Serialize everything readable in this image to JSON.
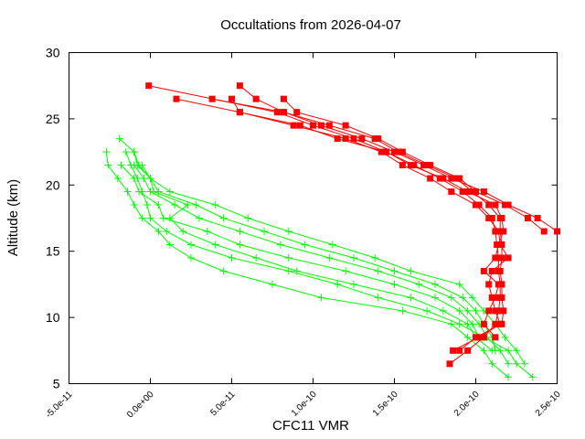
{
  "chart_data": {
    "type": "line",
    "title": "Occultations from 2026-04-07",
    "xlabel": "CFC11 VMR",
    "ylabel": "Altitude (km)",
    "xlim": [
      -5e-11,
      2.5e-10
    ],
    "ylim": [
      5,
      30
    ],
    "xticks": [
      -5e-11,
      0,
      5e-11,
      1e-10,
      1.5e-10,
      2e-10,
      2.5e-10
    ],
    "xtick_labels": [
      "-5.0e-11",
      "0.0e+00",
      "5.0e-11",
      "1.0e-10",
      "1.5e-10",
      "2.0e-10",
      "2.5e-10"
    ],
    "yticks": [
      5,
      10,
      15,
      20,
      25,
      30
    ],
    "ytick_labels": [
      "5",
      "10",
      "15",
      "20",
      "25",
      "30"
    ],
    "grid": false,
    "legend": "none",
    "colors": {
      "red_series": "#ff0000",
      "green_series": "#00ff00",
      "axes": "#000000"
    },
    "series": [
      {
        "color": "#ff0000",
        "marker": "filled-square",
        "points": [
          [
            -1e-12,
            27.5
          ],
          [
            7.8e-11,
            25.5
          ],
          [
            1e-10,
            24.5
          ],
          [
            1.25e-10,
            23.5
          ],
          [
            1.45e-10,
            22.5
          ],
          [
            1.62e-10,
            21.5
          ],
          [
            1.78e-10,
            20.5
          ],
          [
            1.92e-10,
            19.5
          ],
          [
            2.02e-10,
            18.5
          ],
          [
            2.1e-10,
            17.5
          ],
          [
            2.12e-10,
            16.5
          ],
          [
            2.13e-10,
            15.5
          ],
          [
            2.14e-10,
            14.5
          ],
          [
            2.14e-10,
            13.5
          ],
          [
            2.15e-10,
            12.5
          ],
          [
            2.15e-10,
            11.5
          ],
          [
            2.14e-10,
            10.5
          ],
          [
            2.12e-10,
            9.5
          ],
          [
            2.05e-10,
            8.5
          ],
          [
            1.95e-10,
            7.5
          ],
          [
            1.84e-10,
            6.5
          ]
        ]
      },
      {
        "color": "#ff0000",
        "marker": "filled-square",
        "points": [
          [
            1.6e-11,
            26.5
          ],
          [
            5.5e-11,
            25.5
          ],
          [
            8.8e-11,
            24.5
          ],
          [
            1.2e-10,
            23.5
          ],
          [
            1.42e-10,
            22.5
          ],
          [
            1.55e-10,
            21.5
          ],
          [
            1.72e-10,
            20.5
          ],
          [
            1.85e-10,
            19.5
          ],
          [
            2e-10,
            18.5
          ],
          [
            2.08e-10,
            17.5
          ],
          [
            2.14e-10,
            16.5
          ],
          [
            2.15e-10,
            15.5
          ],
          [
            2.2e-10,
            14.5
          ],
          [
            2.1e-10,
            13.5
          ],
          [
            2.08e-10,
            12.5
          ],
          [
            2.1e-10,
            11.5
          ],
          [
            2.12e-10,
            10.5
          ],
          [
            2.15e-10,
            9.5
          ],
          [
            2.02e-10,
            8.5
          ],
          [
            1.86e-10,
            7.5
          ]
        ]
      },
      {
        "color": "#ff0000",
        "marker": "filled-square",
        "points": [
          [
            3.8e-11,
            26.5
          ],
          [
            8.2e-11,
            25.5
          ],
          [
            1.05e-10,
            24.5
          ],
          [
            1.3e-10,
            23.5
          ],
          [
            1.5e-10,
            22.5
          ],
          [
            1.68e-10,
            21.5
          ],
          [
            1.85e-10,
            20.5
          ],
          [
            2.05e-10,
            19.5
          ],
          [
            2.2e-10,
            18.5
          ],
          [
            2.38e-10,
            17.5
          ],
          [
            2.5e-10,
            16.5
          ]
        ]
      },
      {
        "color": "#ff0000",
        "marker": "filled-square",
        "points": [
          [
            5.5e-11,
            27.5
          ],
          [
            6.5e-11,
            26.5
          ],
          [
            8.2e-11,
            25.5
          ],
          [
            1.1e-10,
            24.5
          ],
          [
            1.38e-10,
            23.5
          ],
          [
            1.52e-10,
            22.5
          ],
          [
            1.7e-10,
            21.5
          ],
          [
            1.88e-10,
            20.5
          ],
          [
            1.98e-10,
            19.5
          ],
          [
            2.08e-10,
            18.5
          ],
          [
            2.15e-10,
            17.5
          ],
          [
            2.15e-10,
            16.5
          ],
          [
            2.16e-10,
            15.5
          ],
          [
            2.16e-10,
            14.5
          ],
          [
            2.15e-10,
            13.5
          ],
          [
            2.16e-10,
            12.5
          ],
          [
            2.16e-10,
            11.5
          ],
          [
            2.17e-10,
            10.5
          ],
          [
            2.16e-10,
            9.5
          ],
          [
            2e-10,
            8.5
          ],
          [
            1.9e-10,
            7.5
          ]
        ]
      },
      {
        "color": "#ff0000",
        "marker": "filled-square",
        "points": [
          [
            5e-11,
            26.5
          ],
          [
            5.5e-11,
            25.5
          ],
          [
            9.2e-11,
            24.5
          ],
          [
            1.15e-10,
            23.5
          ],
          [
            1.45e-10,
            22.5
          ],
          [
            1.6e-10,
            21.5
          ],
          [
            1.8e-10,
            20.5
          ],
          [
            1.95e-10,
            19.5
          ],
          [
            2.12e-10,
            18.5
          ],
          [
            2.16e-10,
            17.5
          ],
          [
            2.17e-10,
            16.5
          ],
          [
            2.14e-10,
            15.5
          ],
          [
            2.12e-10,
            14.5
          ],
          [
            2.05e-10,
            13.5
          ],
          [
            2.14e-10,
            12.5
          ],
          [
            2.12e-10,
            11.5
          ],
          [
            2.08e-10,
            10.5
          ],
          [
            2.05e-10,
            9.5
          ],
          [
            2.12e-10,
            8.5
          ]
        ]
      },
      {
        "color": "#ff0000",
        "marker": "filled-square",
        "points": [
          [
            8.2e-11,
            26.5
          ],
          [
            9e-11,
            25.5
          ],
          [
            1.2e-10,
            24.5
          ],
          [
            1.4e-10,
            23.5
          ],
          [
            1.55e-10,
            22.5
          ],
          [
            1.72e-10,
            21.5
          ],
          [
            1.9e-10,
            20.5
          ],
          [
            2e-10,
            19.5
          ],
          [
            2.18e-10,
            18.5
          ],
          [
            2.32e-10,
            17.5
          ],
          [
            2.42e-10,
            16.5
          ]
        ]
      },
      {
        "color": "#00ff00",
        "marker": "plus",
        "points": [
          [
            -1.9e-11,
            23.5
          ],
          [
            -1e-11,
            22.5
          ],
          [
            -8e-12,
            21.5
          ],
          [
            0,
            20.5
          ],
          [
            1.2e-11,
            19.5
          ],
          [
            4e-11,
            18.5
          ],
          [
            6e-11,
            17.5
          ],
          [
            8.5e-11,
            16.5
          ],
          [
            1.12e-10,
            15.5
          ],
          [
            1.38e-10,
            14.5
          ],
          [
            1.6e-10,
            13.5
          ],
          [
            1.9e-10,
            12.5
          ],
          [
            1.98e-10,
            11.5
          ],
          [
            2.05e-10,
            10.5
          ],
          [
            2.12e-10,
            9.5
          ],
          [
            2.18e-10,
            8.5
          ],
          [
            2.25e-10,
            7.5
          ],
          [
            2.3e-10,
            6.5
          ]
        ]
      },
      {
        "color": "#00ff00",
        "marker": "plus",
        "points": [
          [
            -2.7e-11,
            22.5
          ],
          [
            -2.6e-11,
            21.5
          ],
          [
            -2e-11,
            20.5
          ],
          [
            -1.4e-11,
            19.5
          ],
          [
            -1e-11,
            18.5
          ],
          [
            -5e-12,
            17.5
          ],
          [
            5e-12,
            16.5
          ],
          [
            1.2e-11,
            15.5
          ],
          [
            2.5e-11,
            14.5
          ],
          [
            4.5e-11,
            13.5
          ],
          [
            7.5e-11,
            12.5
          ],
          [
            1.05e-10,
            11.5
          ],
          [
            1.55e-10,
            10.5
          ],
          [
            1.85e-10,
            9.5
          ],
          [
            1.95e-10,
            8.5
          ],
          [
            2.05e-10,
            7.5
          ],
          [
            2.1e-10,
            6.5
          ],
          [
            2.2e-10,
            5.5
          ]
        ]
      },
      {
        "color": "#00ff00",
        "marker": "plus",
        "points": [
          [
            -1.5e-11,
            22.5
          ],
          [
            -1.2e-11,
            21.5
          ],
          [
            -8e-12,
            20.5
          ],
          [
            -5e-12,
            19.5
          ],
          [
            -2e-12,
            18.5
          ],
          [
            0,
            17.5
          ],
          [
            1e-11,
            16.5
          ],
          [
            2.5e-11,
            15.5
          ],
          [
            5e-11,
            14.5
          ],
          [
            8.5e-11,
            13.5
          ],
          [
            1.15e-10,
            12.5
          ],
          [
            1.4e-10,
            11.5
          ],
          [
            1.7e-10,
            10.5
          ],
          [
            1.9e-10,
            9.5
          ],
          [
            2.05e-10,
            8.5
          ],
          [
            2.2e-10,
            7.5
          ],
          [
            2.25e-10,
            6.5
          ],
          [
            2.35e-10,
            5.5
          ]
        ]
      },
      {
        "color": "#00ff00",
        "marker": "plus",
        "points": [
          [
            -1e-11,
            22.5
          ],
          [
            -7e-12,
            21.5
          ],
          [
            0,
            20.5
          ],
          [
            2e-12,
            19.5
          ],
          [
            2.3e-11,
            18.5
          ],
          [
            1.2e-11,
            17.5
          ],
          [
            2e-11,
            16.5
          ],
          [
            4e-11,
            15.5
          ],
          [
            6.5e-11,
            14.5
          ],
          [
            9e-11,
            13.5
          ],
          [
            1.25e-10,
            12.5
          ],
          [
            1.6e-10,
            11.5
          ],
          [
            1.8e-10,
            10.5
          ],
          [
            1.95e-10,
            9.5
          ],
          [
            2e-10,
            8.5
          ],
          [
            2.1e-10,
            7.5
          ]
        ]
      },
      {
        "color": "#00ff00",
        "marker": "plus",
        "points": [
          [
            -1.8e-11,
            21.5
          ],
          [
            -1e-11,
            20.5
          ],
          [
            -7e-12,
            19.5
          ],
          [
            5e-12,
            18.5
          ],
          [
            8e-12,
            17.5
          ],
          [
            3.5e-11,
            16.5
          ],
          [
            5.5e-11,
            15.5
          ],
          [
            8.5e-11,
            14.5
          ],
          [
            1.2e-10,
            13.5
          ],
          [
            1.5e-10,
            12.5
          ],
          [
            1.75e-10,
            11.5
          ],
          [
            1.9e-10,
            10.5
          ],
          [
            1.98e-10,
            9.5
          ],
          [
            2.02e-10,
            8.5
          ]
        ]
      },
      {
        "color": "#00ff00",
        "marker": "plus",
        "points": [
          [
            -5e-12,
            21.5
          ],
          [
            0,
            20.5
          ],
          [
            5e-12,
            19.5
          ],
          [
            2.8e-11,
            18.5
          ],
          [
            4.5e-11,
            17.5
          ],
          [
            7e-11,
            16.5
          ],
          [
            9.5e-11,
            15.5
          ],
          [
            1.25e-10,
            14.5
          ],
          [
            1.5e-10,
            13.5
          ],
          [
            1.75e-10,
            12.5
          ],
          [
            1.92e-10,
            11.5
          ],
          [
            2e-10,
            10.5
          ],
          [
            2.05e-10,
            9.5
          ],
          [
            2.1e-10,
            8.5
          ],
          [
            2.12e-10,
            7.5
          ]
        ]
      },
      {
        "color": "#00ff00",
        "marker": "plus",
        "points": [
          [
            -1e-11,
            21.5
          ],
          [
            -4e-12,
            20.5
          ],
          [
            0,
            19.5
          ],
          [
            1.5e-11,
            18.5
          ],
          [
            3e-11,
            17.5
          ],
          [
            5.5e-11,
            16.5
          ],
          [
            8e-11,
            15.5
          ],
          [
            1.1e-10,
            14.5
          ],
          [
            1.4e-10,
            13.5
          ],
          [
            1.65e-10,
            12.5
          ],
          [
            1.85e-10,
            11.5
          ],
          [
            1.95e-10,
            10.5
          ],
          [
            2.02e-10,
            9.5
          ],
          [
            2.07e-10,
            8.5
          ],
          [
            2.15e-10,
            7.5
          ],
          [
            2.2e-10,
            6.5
          ]
        ]
      }
    ]
  }
}
